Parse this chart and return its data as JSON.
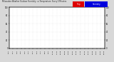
{
  "title": "Milwaukee Weather Outdoor Humidity  vs Temperature  Every 5 Minutes",
  "bg_color": "#d8d8d8",
  "plot_bg": "#ffffff",
  "blue_color": "#0000ff",
  "red_color": "#cc0000",
  "legend_red_color": "#dd0000",
  "legend_blue_color": "#0000dd",
  "ylim_left": [
    0,
    100
  ],
  "ylim_right": [
    0,
    100
  ],
  "n_points": 288,
  "grid_color": "#bbbbbb",
  "dot_size": 0.4
}
